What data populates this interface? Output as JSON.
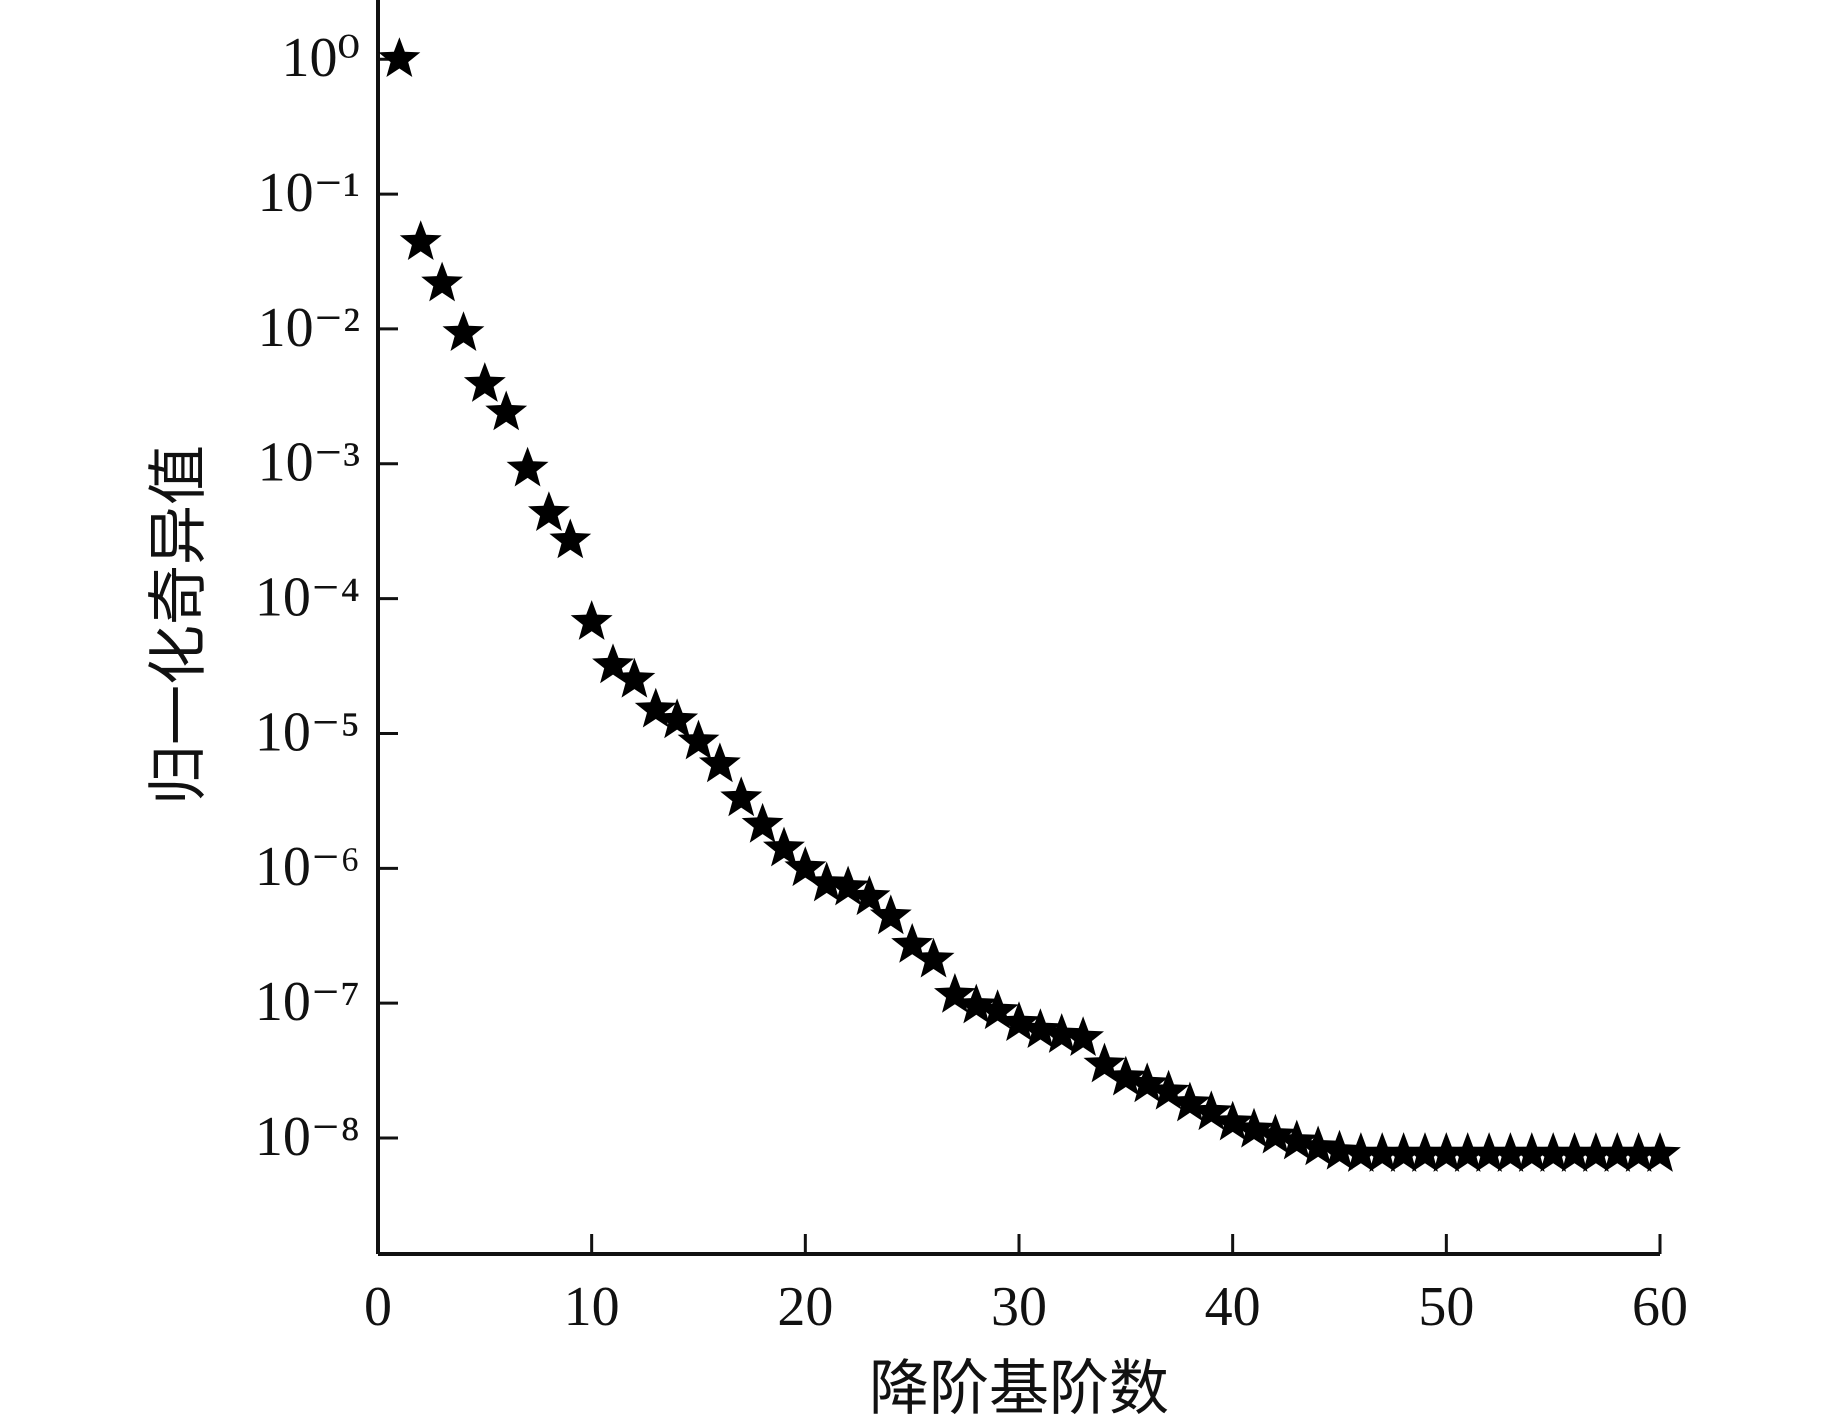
{
  "chart_data": {
    "type": "scatter",
    "xlabel": "降阶基阶数",
    "ylabel": "归一化奇异值",
    "x": [
      1,
      2,
      3,
      4,
      5,
      6,
      7,
      8,
      9,
      10,
      11,
      12,
      13,
      14,
      15,
      16,
      17,
      18,
      19,
      20,
      21,
      22,
      23,
      24,
      25,
      26,
      27,
      28,
      29,
      30,
      31,
      32,
      33,
      34,
      35,
      36,
      37,
      38,
      39,
      40,
      41,
      42,
      43,
      44,
      45,
      46,
      47,
      48,
      49,
      50,
      51,
      52,
      53,
      54,
      55,
      56,
      57,
      58,
      59,
      60
    ],
    "values": [
      1,
      0.044,
      0.0217,
      0.0093,
      0.0039,
      0.0024,
      0.00092,
      0.00043,
      0.00027,
      6.7e-05,
      3.2e-05,
      2.5e-05,
      1.5e-05,
      1.25e-05,
      8.7e-06,
      5.9e-06,
      3.3e-06,
      2.1e-06,
      1.4e-06,
      1e-06,
      7.7e-07,
      7.2e-07,
      6.1e-07,
      4.4e-07,
      2.7e-07,
      2.1e-07,
      1.15e-07,
      9.6e-08,
      8.7e-08,
      7.1e-08,
      6.3e-08,
      5.8e-08,
      5.5e-08,
      3.5e-08,
      2.8e-08,
      2.5e-08,
      2.2e-08,
      1.8e-08,
      1.55e-08,
      1.3e-08,
      1.15e-08,
      1.04e-08,
      9.4e-09,
      8.5e-09,
      7.9e-09,
      7.6e-09,
      7.6e-09,
      7.6e-09,
      7.6e-09,
      7.6e-09,
      7.6e-09,
      7.6e-09,
      7.6e-09,
      7.6e-09,
      7.6e-09,
      7.6e-09,
      7.6e-09,
      7.6e-09,
      7.6e-09,
      7.6e-09
    ],
    "color": "#000000",
    "marker": "star",
    "log_y": true,
    "xlim": [
      0,
      60
    ],
    "xticks": [
      0,
      10,
      20,
      30,
      40,
      50,
      60
    ],
    "ylim": [
      1.38e-09,
      2.75
    ],
    "yticks": [
      {
        "value": 1,
        "label": "10⁰"
      },
      {
        "value": 0.1,
        "label": "10⁻¹"
      },
      {
        "value": 0.01,
        "label": "10⁻²"
      },
      {
        "value": 0.001,
        "label": "10⁻³"
      },
      {
        "value": 0.0001,
        "label": "10⁻⁴"
      },
      {
        "value": 1e-05,
        "label": "10⁻⁵"
      },
      {
        "value": 1e-06,
        "label": "10⁻⁶"
      },
      {
        "value": 1e-07,
        "label": "10⁻⁷"
      },
      {
        "value": 1e-08,
        "label": "10⁻⁸"
      }
    ]
  }
}
